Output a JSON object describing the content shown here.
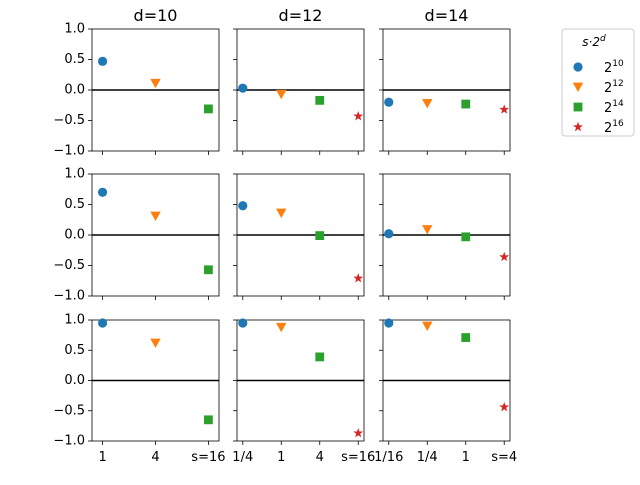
{
  "chart_data": {
    "type": "scatter",
    "grid": false,
    "ylim": [
      -1.0,
      1.0
    ],
    "yticks": [
      1.0,
      0.5,
      0.0,
      -0.5,
      -1.0
    ],
    "ytick_labels": [
      "1.0",
      "0.5",
      "0.0",
      "−0.5",
      "−1.0"
    ],
    "columns": [
      {
        "title": "d=10",
        "xtick_labels": [
          "1",
          "4",
          "s=16"
        ]
      },
      {
        "title": "d=12",
        "xtick_labels": [
          "1/4",
          "1",
          "4",
          "s=16"
        ]
      },
      {
        "title": "d=14",
        "xtick_labels": [
          "1/16",
          "1/4",
          "1",
          "s=4"
        ]
      }
    ],
    "legend": {
      "title": "s·2",
      "title_superscript": "d",
      "placement": "outside-right-top",
      "entries": [
        {
          "base": "2",
          "exp": "10",
          "marker": "circle",
          "color": "#1f77b4"
        },
        {
          "base": "2",
          "exp": "12",
          "marker": "triangle-down",
          "color": "#ff7f0e"
        },
        {
          "base": "2",
          "exp": "14",
          "marker": "square",
          "color": "#2ca02c"
        },
        {
          "base": "2",
          "exp": "16",
          "marker": "star",
          "color": "#d62728"
        }
      ]
    },
    "panels": [
      [
        {
          "x": [
            1,
            2,
            3
          ],
          "y": [
            0.47,
            0.11,
            -0.31
          ],
          "series": [
            0,
            1,
            2
          ]
        },
        {
          "x": [
            1,
            2,
            3,
            4
          ],
          "y": [
            0.03,
            -0.07,
            -0.17,
            -0.43
          ],
          "series": [
            0,
            1,
            2,
            3
          ]
        },
        {
          "x": [
            1,
            2,
            3,
            4
          ],
          "y": [
            -0.2,
            -0.22,
            -0.23,
            -0.32
          ],
          "series": [
            0,
            1,
            2,
            3
          ]
        }
      ],
      [
        {
          "x": [
            1,
            2,
            3
          ],
          "y": [
            0.7,
            0.31,
            -0.57
          ],
          "series": [
            0,
            1,
            2
          ]
        },
        {
          "x": [
            1,
            2,
            3,
            4
          ],
          "y": [
            0.48,
            0.36,
            -0.01,
            -0.71
          ],
          "series": [
            0,
            1,
            2,
            3
          ]
        },
        {
          "x": [
            1,
            2,
            3,
            4
          ],
          "y": [
            0.02,
            0.09,
            -0.03,
            -0.36
          ],
          "series": [
            0,
            1,
            2,
            3
          ]
        }
      ],
      [
        {
          "x": [
            1,
            2,
            3
          ],
          "y": [
            0.95,
            0.62,
            -0.65
          ],
          "series": [
            0,
            1,
            2
          ]
        },
        {
          "x": [
            1,
            2,
            3,
            4
          ],
          "y": [
            0.95,
            0.88,
            0.39,
            -0.87
          ],
          "series": [
            0,
            1,
            2,
            3
          ]
        },
        {
          "x": [
            1,
            2,
            3,
            4
          ],
          "y": [
            0.95,
            0.9,
            0.71,
            -0.44
          ],
          "series": [
            0,
            1,
            2,
            3
          ]
        }
      ]
    ]
  }
}
